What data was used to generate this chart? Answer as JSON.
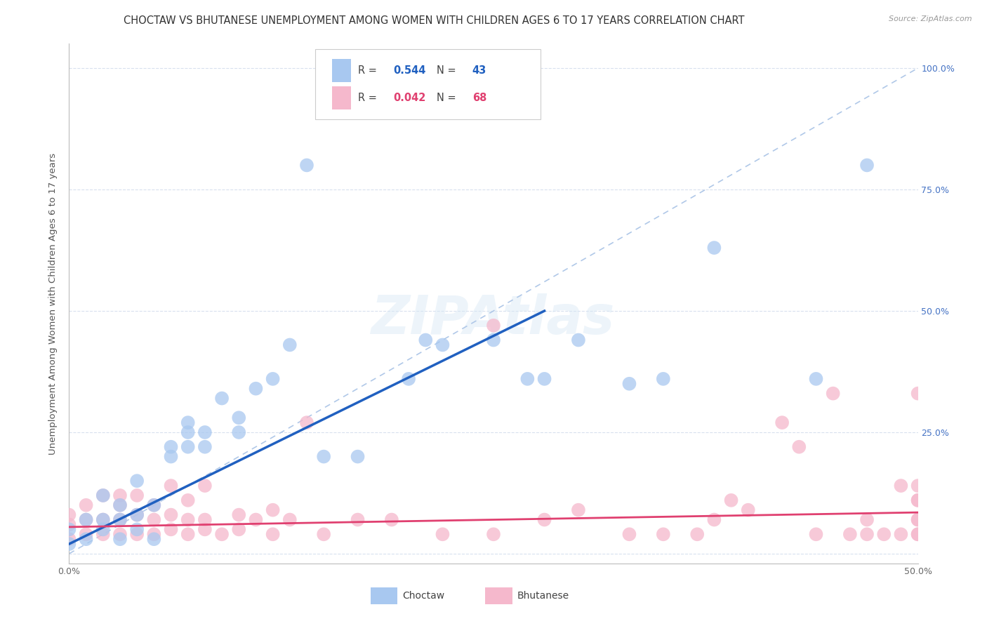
{
  "title": "CHOCTAW VS BHUTANESE UNEMPLOYMENT AMONG WOMEN WITH CHILDREN AGES 6 TO 17 YEARS CORRELATION CHART",
  "source": "Source: ZipAtlas.com",
  "ylabel": "Unemployment Among Women with Children Ages 6 to 17 years",
  "xlim": [
    0.0,
    0.5
  ],
  "ylim": [
    -0.02,
    1.05
  ],
  "choctaw_color": "#A8C8F0",
  "bhutanese_color": "#F5B8CC",
  "choctaw_R": 0.544,
  "choctaw_N": 43,
  "bhutanese_R": 0.042,
  "bhutanese_N": 68,
  "choctaw_line_color": "#2060C0",
  "bhutanese_line_color": "#E04070",
  "diagonal_color": "#B0C8E8",
  "watermark": "ZIPAtlas",
  "background_color": "#FFFFFF",
  "grid_color": "#D8E0EE",
  "title_fontsize": 10.5,
  "axis_label_fontsize": 9.5,
  "tick_fontsize": 9,
  "choctaw_x": [
    0.0,
    0.0,
    0.01,
    0.01,
    0.02,
    0.02,
    0.02,
    0.03,
    0.03,
    0.03,
    0.04,
    0.04,
    0.04,
    0.05,
    0.05,
    0.06,
    0.06,
    0.07,
    0.07,
    0.07,
    0.08,
    0.08,
    0.09,
    0.1,
    0.1,
    0.11,
    0.12,
    0.13,
    0.14,
    0.15,
    0.17,
    0.2,
    0.21,
    0.22,
    0.25,
    0.27,
    0.28,
    0.3,
    0.33,
    0.35,
    0.38,
    0.44,
    0.47
  ],
  "choctaw_y": [
    0.02,
    0.05,
    0.03,
    0.07,
    0.05,
    0.07,
    0.12,
    0.03,
    0.07,
    0.1,
    0.05,
    0.08,
    0.15,
    0.03,
    0.1,
    0.2,
    0.22,
    0.22,
    0.25,
    0.27,
    0.22,
    0.25,
    0.32,
    0.25,
    0.28,
    0.34,
    0.36,
    0.43,
    0.8,
    0.2,
    0.2,
    0.36,
    0.44,
    0.43,
    0.44,
    0.36,
    0.36,
    0.44,
    0.35,
    0.36,
    0.63,
    0.36,
    0.8
  ],
  "bhutanese_x": [
    0.0,
    0.0,
    0.0,
    0.01,
    0.01,
    0.01,
    0.02,
    0.02,
    0.02,
    0.03,
    0.03,
    0.03,
    0.03,
    0.04,
    0.04,
    0.04,
    0.05,
    0.05,
    0.05,
    0.06,
    0.06,
    0.06,
    0.07,
    0.07,
    0.07,
    0.08,
    0.08,
    0.08,
    0.09,
    0.1,
    0.1,
    0.11,
    0.12,
    0.12,
    0.13,
    0.14,
    0.15,
    0.17,
    0.19,
    0.22,
    0.25,
    0.25,
    0.28,
    0.3,
    0.33,
    0.35,
    0.37,
    0.38,
    0.39,
    0.4,
    0.42,
    0.43,
    0.44,
    0.45,
    0.46,
    0.47,
    0.47,
    0.48,
    0.49,
    0.49,
    0.5,
    0.5,
    0.5,
    0.5,
    0.5,
    0.5,
    0.5,
    0.5
  ],
  "bhutanese_y": [
    0.03,
    0.06,
    0.08,
    0.04,
    0.07,
    0.1,
    0.04,
    0.07,
    0.12,
    0.04,
    0.07,
    0.1,
    0.12,
    0.04,
    0.08,
    0.12,
    0.04,
    0.07,
    0.1,
    0.05,
    0.08,
    0.14,
    0.04,
    0.07,
    0.11,
    0.05,
    0.07,
    0.14,
    0.04,
    0.05,
    0.08,
    0.07,
    0.04,
    0.09,
    0.07,
    0.27,
    0.04,
    0.07,
    0.07,
    0.04,
    0.47,
    0.04,
    0.07,
    0.09,
    0.04,
    0.04,
    0.04,
    0.07,
    0.11,
    0.09,
    0.27,
    0.22,
    0.04,
    0.33,
    0.04,
    0.07,
    0.04,
    0.04,
    0.04,
    0.14,
    0.04,
    0.07,
    0.11,
    0.14,
    0.33,
    0.07,
    0.11,
    0.04
  ],
  "choctaw_line_x": [
    0.0,
    0.28
  ],
  "choctaw_line_y": [
    0.02,
    0.5
  ],
  "bhutanese_line_x": [
    0.0,
    0.5
  ],
  "bhutanese_line_y": [
    0.055,
    0.085
  ]
}
